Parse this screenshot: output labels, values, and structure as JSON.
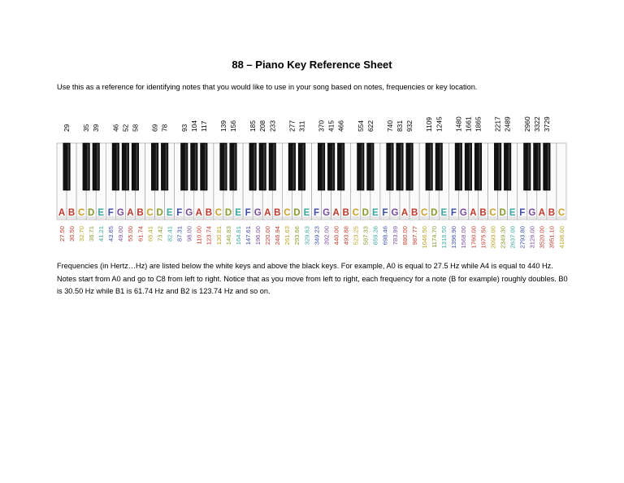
{
  "title": "88 – Piano Key Reference Sheet",
  "intro": "Use this as a reference for identifying notes that you would like to use in your song based on notes, frequencies or key location.",
  "white_keys": [
    {
      "note": "A",
      "freq": "27.50"
    },
    {
      "note": "B",
      "freq": "30.50"
    },
    {
      "note": "C",
      "freq": "32.70"
    },
    {
      "note": "D",
      "freq": "36.71"
    },
    {
      "note": "E",
      "freq": "41.21"
    },
    {
      "note": "F",
      "freq": "43.65"
    },
    {
      "note": "G",
      "freq": "49.00"
    },
    {
      "note": "A",
      "freq": "55.00"
    },
    {
      "note": "B",
      "freq": "61.74"
    },
    {
      "note": "C",
      "freq": "65.41"
    },
    {
      "note": "D",
      "freq": "73.42"
    },
    {
      "note": "E",
      "freq": "82.41"
    },
    {
      "note": "F",
      "freq": "87.31"
    },
    {
      "note": "G",
      "freq": "98.00"
    },
    {
      "note": "A",
      "freq": "110.00"
    },
    {
      "note": "B",
      "freq": "123.74"
    },
    {
      "note": "C",
      "freq": "130.81"
    },
    {
      "note": "D",
      "freq": "146.83"
    },
    {
      "note": "E",
      "freq": "164.81"
    },
    {
      "note": "F",
      "freq": "147.61"
    },
    {
      "note": "G",
      "freq": "196.00"
    },
    {
      "note": "A",
      "freq": "220.00"
    },
    {
      "note": "B",
      "freq": "246.94"
    },
    {
      "note": "C",
      "freq": "261.63"
    },
    {
      "note": "D",
      "freq": "293.66"
    },
    {
      "note": "E",
      "freq": "329.63"
    },
    {
      "note": "F",
      "freq": "349.23"
    },
    {
      "note": "G",
      "freq": "392.00"
    },
    {
      "note": "A",
      "freq": "440.00"
    },
    {
      "note": "B",
      "freq": "493.88"
    },
    {
      "note": "C",
      "freq": "523.25"
    },
    {
      "note": "D",
      "freq": "587.33"
    },
    {
      "note": "E",
      "freq": "659.26"
    },
    {
      "note": "F",
      "freq": "698.46"
    },
    {
      "note": "G",
      "freq": "783.99"
    },
    {
      "note": "A",
      "freq": "880.00"
    },
    {
      "note": "B",
      "freq": "987.77"
    },
    {
      "note": "C",
      "freq": "1046.50"
    },
    {
      "note": "D",
      "freq": "1174.70"
    },
    {
      "note": "E",
      "freq": "1318.50"
    },
    {
      "note": "F",
      "freq": "1396.90"
    },
    {
      "note": "G",
      "freq": "1568.00"
    },
    {
      "note": "A",
      "freq": "1760.00"
    },
    {
      "note": "B",
      "freq": "1975.50"
    },
    {
      "note": "C",
      "freq": "2093.00"
    },
    {
      "note": "D",
      "freq": "2349.30"
    },
    {
      "note": "E",
      "freq": "2637.00"
    },
    {
      "note": "F",
      "freq": "2793.80"
    },
    {
      "note": "G",
      "freq": "3126.00"
    },
    {
      "note": "A",
      "freq": "3520.00"
    },
    {
      "note": "B",
      "freq": "3951.10"
    },
    {
      "note": "C",
      "freq": "4186.00"
    }
  ],
  "black_keys": [
    {
      "after_white": 0,
      "label": "29"
    },
    {
      "after_white": 2,
      "label": "35"
    },
    {
      "after_white": 3,
      "label": "39"
    },
    {
      "after_white": 5,
      "label": "46"
    },
    {
      "after_white": 6,
      "label": "52"
    },
    {
      "after_white": 7,
      "label": "58"
    },
    {
      "after_white": 9,
      "label": "69"
    },
    {
      "after_white": 10,
      "label": "78"
    },
    {
      "after_white": 12,
      "label": "93"
    },
    {
      "after_white": 13,
      "label": "104"
    },
    {
      "after_white": 14,
      "label": "117"
    },
    {
      "after_white": 16,
      "label": "139"
    },
    {
      "after_white": 17,
      "label": "156"
    },
    {
      "after_white": 19,
      "label": "185"
    },
    {
      "after_white": 20,
      "label": "208"
    },
    {
      "after_white": 21,
      "label": "233"
    },
    {
      "after_white": 23,
      "label": "277"
    },
    {
      "after_white": 24,
      "label": "311"
    },
    {
      "after_white": 26,
      "label": "370"
    },
    {
      "after_white": 27,
      "label": "415"
    },
    {
      "after_white": 28,
      "label": "466"
    },
    {
      "after_white": 30,
      "label": "554"
    },
    {
      "after_white": 31,
      "label": "622"
    },
    {
      "after_white": 33,
      "label": "740"
    },
    {
      "after_white": 34,
      "label": "831"
    },
    {
      "after_white": 35,
      "label": "932"
    },
    {
      "after_white": 37,
      "label": "1109"
    },
    {
      "after_white": 38,
      "label": "1245"
    },
    {
      "after_white": 40,
      "label": "1480"
    },
    {
      "after_white": 41,
      "label": "1661"
    },
    {
      "after_white": 42,
      "label": "1865"
    },
    {
      "after_white": 44,
      "label": "2217"
    },
    {
      "after_white": 45,
      "label": "2489"
    },
    {
      "after_white": 47,
      "label": "2960"
    },
    {
      "after_white": 48,
      "label": "3322"
    },
    {
      "after_white": 49,
      "label": "3729"
    }
  ],
  "note_colors": {
    "A": "#c0392b",
    "B": "#c0392b",
    "C": "#c9a227",
    "D": "#8a9a2b",
    "E": "#3aa7a0",
    "F": "#3b4fa8",
    "G": "#7a4c9e"
  },
  "freq_colors": {
    "A": "#c0392b",
    "B": "#c0392b",
    "C": "#b8a11d",
    "D": "#8a9a2b",
    "E": "#3aa7a0",
    "F": "#3b4fa8",
    "G": "#7a4c9e"
  },
  "footer": [
    "Frequencies (in Hertz…Hz) are listed below the white keys and above the black keys. For example, A0 is equal to 27.5 Hz while A4 is equal to 440 Hz. Notes start from A0 and go to C8 from left to right. Notice that as you move from left to right, each frequency for a note (B for example) roughly doubles. B0 is 30.50 Hz while B1 is 61.74 Hz and B2 is 123.74 Hz and so on."
  ]
}
